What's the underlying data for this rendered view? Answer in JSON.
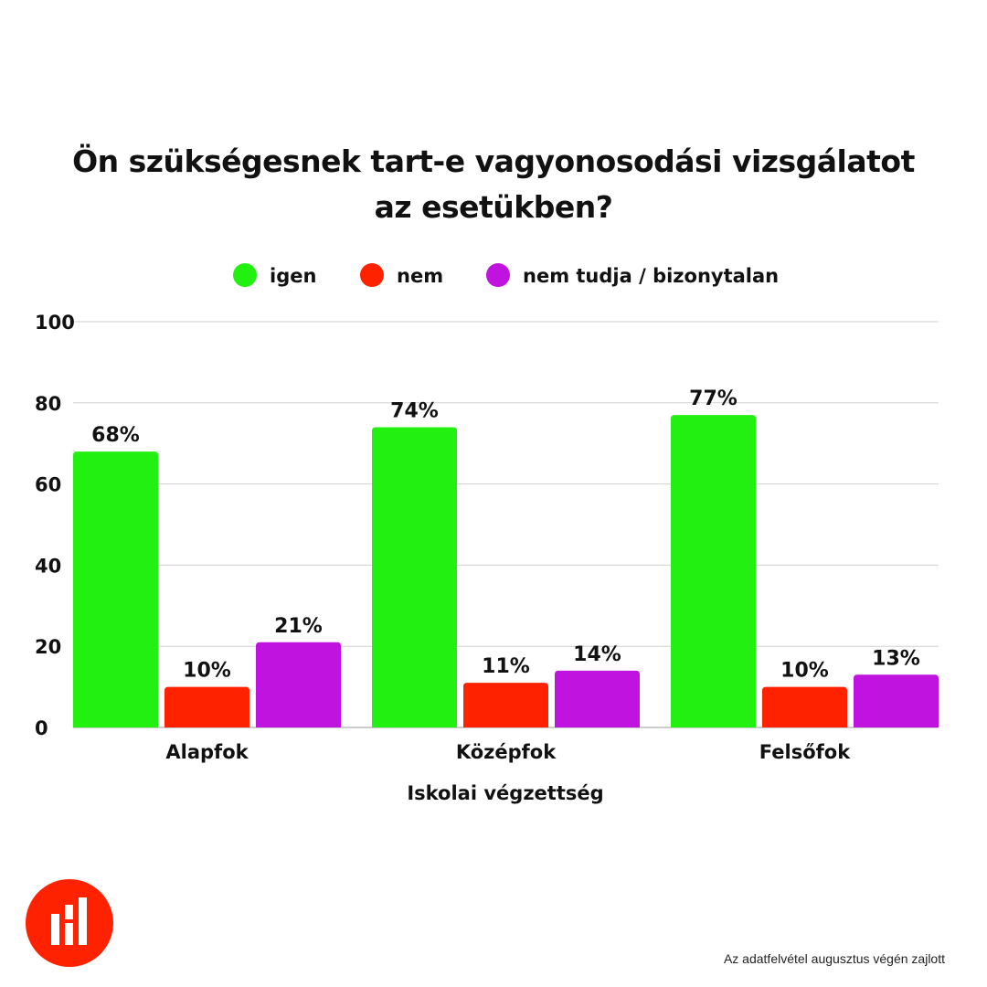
{
  "chart_data": {
    "type": "bar",
    "title": "Ön szükségesnek tart-e vagyonosodási vizsgálatot az esetükben?",
    "xlabel": "Iskolai végzettség",
    "ylabel": "",
    "ylim": [
      0,
      100
    ],
    "yticks": [
      0,
      20,
      40,
      60,
      80,
      100
    ],
    "grid": true,
    "legend_position": "top-center",
    "categories": [
      "Alapfok",
      "Középfok",
      "Felsőfok"
    ],
    "series": [
      {
        "name": "igen",
        "color": "#22f011",
        "values": [
          68,
          74,
          77
        ]
      },
      {
        "name": "nem",
        "color": "#ff2200",
        "values": [
          10,
          11,
          10
        ]
      },
      {
        "name": "nem tudja / bizonytalan",
        "color": "#c013e0",
        "values": [
          21,
          14,
          13
        ]
      }
    ],
    "value_suffix": "%"
  },
  "footnote": "Az adatfelvétel  augusztus végén zajlott",
  "logo_color": "#ff2200"
}
